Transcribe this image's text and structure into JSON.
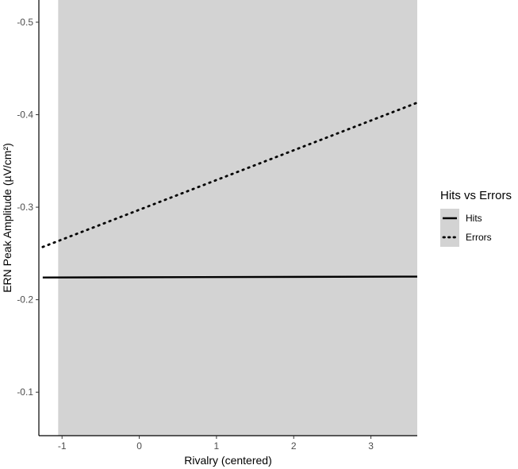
{
  "chart_data": {
    "type": "line",
    "title": "",
    "xlabel": "Rivalry (centered)",
    "ylabel": "ERN Peak Amplitude (µV/cm²)",
    "xlim": [
      -1.3,
      3.6
    ],
    "ylim": [
      -0.053,
      -0.524
    ],
    "y_reversed": true,
    "x_ticks": [
      -1,
      0,
      1,
      2,
      3
    ],
    "x_tick_labels": [
      "-1",
      "0",
      "1",
      "2",
      "3"
    ],
    "y_ticks": [
      -0.1,
      -0.2,
      -0.3,
      -0.4,
      -0.5
    ],
    "y_tick_labels": [
      "-0.1",
      "-0.2",
      "-0.3",
      "-0.4",
      "-0.5"
    ],
    "shaded_region": {
      "x_from": -1.05,
      "x_to": 3.6,
      "color": "#d3d3d3"
    },
    "grid": false,
    "legend": {
      "title": "Hits vs Errors",
      "position": "right",
      "background": "#d3d3d3"
    },
    "series": [
      {
        "name": "Hits",
        "style": "solid",
        "color": "#000000",
        "x": [
          -1.25,
          3.6
        ],
        "y": [
          -0.224,
          -0.225
        ]
      },
      {
        "name": "Errors",
        "style": "dotted",
        "color": "#000000",
        "x": [
          -1.25,
          3.6
        ],
        "y": [
          -0.257,
          -0.413
        ]
      }
    ]
  }
}
